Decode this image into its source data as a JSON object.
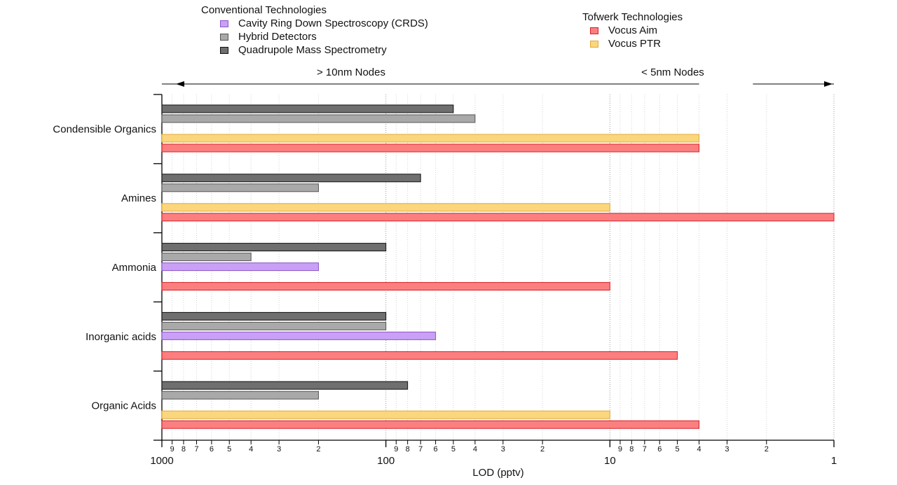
{
  "legend": {
    "conventional_title": "Conventional Technologies",
    "tofwerk_title": "Tofwerk Technologies",
    "conventional": [
      {
        "name": "Cavity Ring Down Spectroscopy (CRDS)",
        "color": "#c9a0f5",
        "stroke": "#8a55c8"
      },
      {
        "name": "Hybrid Detectors",
        "color": "#a9a9a9",
        "stroke": "#555555"
      },
      {
        "name": "Quadrupole Mass Spectrometry",
        "color": "#6f6f6f",
        "stroke": "#111111"
      }
    ],
    "tofwerk": [
      {
        "name": "Vocus Aim",
        "color": "#fc7f7f",
        "stroke": "#d4202a"
      },
      {
        "name": "Vocus PTR",
        "color": "#fbd67d",
        "stroke": "#e0a93a"
      }
    ]
  },
  "chart_data": {
    "type": "bar",
    "orientation": "horizontal",
    "x_scale": "log",
    "x_reversed": true,
    "xlim": [
      1000,
      1
    ],
    "xlabel": "LOD (pptv)",
    "major_ticks": [
      "1000",
      "100",
      "10",
      "1"
    ],
    "minor_tick_labels": [
      "9",
      "8",
      "7",
      "6",
      "5",
      "4",
      "3",
      "2"
    ],
    "annotations": [
      {
        "text": "> 10nm Nodes",
        "from": 1000,
        "to": 4,
        "arrow": "left"
      },
      {
        "text": "< 5nm Nodes",
        "from": 2.3,
        "to": 1,
        "arrow": "right"
      }
    ],
    "categories": [
      "Condensible Organics",
      "Amines",
      "Ammonia",
      "Inorganic acids",
      "Organic Acids"
    ],
    "series": [
      {
        "name": "Quadrupole Mass Spectrometry",
        "values": [
          50,
          70,
          100,
          100,
          80
        ]
      },
      {
        "name": "Hybrid Detectors",
        "values": [
          40,
          200,
          400,
          100,
          200
        ]
      },
      {
        "name": "Cavity Ring Down Spectroscopy (CRDS)",
        "values": [
          null,
          null,
          200,
          60,
          null
        ]
      },
      {
        "name": "Vocus PTR",
        "values": [
          4,
          10,
          null,
          null,
          10
        ]
      },
      {
        "name": "Vocus Aim",
        "values": [
          4,
          1,
          10,
          5,
          4
        ]
      }
    ]
  }
}
